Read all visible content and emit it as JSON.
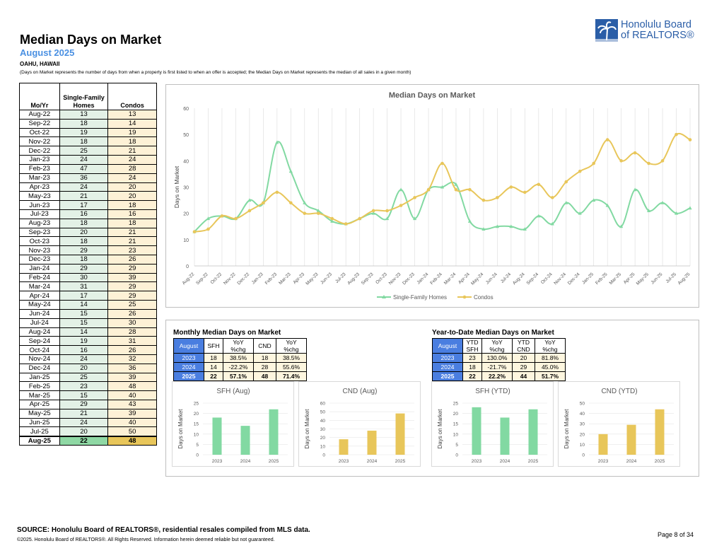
{
  "header": {
    "title": "Median Days on Market",
    "subtitle": "August 2025",
    "location": "OAHU, HAWAII",
    "note": "(Days on Market represents the number of days from when a property is first listed to when an offer is accepted; the Median Days on Market represents the median of all sales in a given month)"
  },
  "logo": {
    "line1": "Honolulu Board",
    "line2": "of REALTORS®"
  },
  "left_table": {
    "headers": [
      "Mo/Yr",
      "Single-Family Homes",
      "Condos"
    ],
    "rows": [
      [
        "Aug-22",
        "13",
        "13"
      ],
      [
        "Sep-22",
        "18",
        "14"
      ],
      [
        "Oct-22",
        "19",
        "19"
      ],
      [
        "Nov-22",
        "18",
        "18"
      ],
      [
        "Dec-22",
        "25",
        "21"
      ],
      [
        "Jan-23",
        "24",
        "24"
      ],
      [
        "Feb-23",
        "47",
        "28"
      ],
      [
        "Mar-23",
        "36",
        "24"
      ],
      [
        "Apr-23",
        "24",
        "20"
      ],
      [
        "May-23",
        "21",
        "20"
      ],
      [
        "Jun-23",
        "17",
        "18"
      ],
      [
        "Jul-23",
        "16",
        "16"
      ],
      [
        "Aug-23",
        "18",
        "18"
      ],
      [
        "Sep-23",
        "20",
        "21"
      ],
      [
        "Oct-23",
        "18",
        "21"
      ],
      [
        "Nov-23",
        "29",
        "23"
      ],
      [
        "Dec-23",
        "18",
        "26"
      ],
      [
        "Jan-24",
        "29",
        "29"
      ],
      [
        "Feb-24",
        "30",
        "39"
      ],
      [
        "Mar-24",
        "31",
        "29"
      ],
      [
        "Apr-24",
        "17",
        "29"
      ],
      [
        "May-24",
        "14",
        "25"
      ],
      [
        "Jun-24",
        "15",
        "26"
      ],
      [
        "Jul-24",
        "15",
        "30"
      ],
      [
        "Aug-24",
        "14",
        "28"
      ],
      [
        "Sep-24",
        "19",
        "31"
      ],
      [
        "Oct-24",
        "16",
        "26"
      ],
      [
        "Nov-24",
        "24",
        "32"
      ],
      [
        "Dec-24",
        "20",
        "36"
      ],
      [
        "Jan-25",
        "25",
        "39"
      ],
      [
        "Feb-25",
        "23",
        "48"
      ],
      [
        "Mar-25",
        "15",
        "40"
      ],
      [
        "Apr-25",
        "29",
        "43"
      ],
      [
        "May-25",
        "21",
        "39"
      ],
      [
        "Jun-25",
        "24",
        "40"
      ],
      [
        "Jul-25",
        "20",
        "50"
      ]
    ],
    "last_row": [
      "Aug-25",
      "22",
      "48"
    ]
  },
  "monthly": {
    "title": "Monthly Median Days on Market",
    "headers": [
      "August",
      "SFH",
      "YoY %chg",
      "CND",
      "YoY %chg"
    ],
    "rows": [
      [
        "2023",
        "18",
        "38.5%",
        "18",
        "38.5%"
      ],
      [
        "2024",
        "14",
        "-22.2%",
        "28",
        "55.6%"
      ],
      [
        "2025",
        "22",
        "57.1%",
        "48",
        "71.4%"
      ]
    ]
  },
  "ytd": {
    "title": "Year-to-Date Median Days on Market",
    "headers": [
      "August",
      "YTD SFH",
      "YoY %chg",
      "YTD CND",
      "YoY %chg"
    ],
    "rows": [
      [
        "2023",
        "23",
        "130.0%",
        "20",
        "81.8%"
      ],
      [
        "2024",
        "18",
        "-21.7%",
        "29",
        "45.0%"
      ],
      [
        "2025",
        "22",
        "22.2%",
        "44",
        "51.7%"
      ]
    ]
  },
  "colors": {
    "sfh": "#82d9a2",
    "condo": "#e8c65a",
    "header_blue": "#4a7ee0",
    "accent": "#4a90e2"
  },
  "chart_data": [
    {
      "type": "line",
      "title": "Median Days on Market",
      "ylabel": "Days on Market",
      "xlabel": "",
      "ylim": [
        0,
        60
      ],
      "yticks": [
        0,
        10,
        20,
        30,
        40,
        50,
        60
      ],
      "grid": true,
      "legend": "bottom",
      "categories": [
        "Aug-22",
        "Sep-22",
        "Oct-22",
        "Nov-22",
        "Dec-22",
        "Jan-23",
        "Feb-23",
        "Mar-23",
        "Apr-23",
        "May-23",
        "Jun-23",
        "Jul-23",
        "Aug-23",
        "Sep-23",
        "Oct-23",
        "Nov-23",
        "Dec-23",
        "Jan-24",
        "Feb-24",
        "Mar-24",
        "Apr-24",
        "May-24",
        "Jun-24",
        "Jul-24",
        "Aug-24",
        "Sep-24",
        "Oct-24",
        "Nov-24",
        "Dec-24",
        "Jan-25",
        "Feb-25",
        "Mar-25",
        "Apr-25",
        "May-25",
        "Jun-25",
        "Jul-25",
        "Aug-25"
      ],
      "series": [
        {
          "name": "Single-Family Homes",
          "values": [
            13,
            18,
            19,
            18,
            25,
            24,
            47,
            36,
            24,
            21,
            17,
            16,
            18,
            20,
            18,
            29,
            18,
            29,
            30,
            31,
            17,
            14,
            15,
            15,
            14,
            19,
            16,
            24,
            20,
            25,
            23,
            15,
            29,
            21,
            24,
            20,
            22
          ]
        },
        {
          "name": "Condos",
          "values": [
            13,
            14,
            19,
            18,
            21,
            24,
            28,
            24,
            20,
            20,
            18,
            16,
            18,
            21,
            21,
            23,
            26,
            29,
            39,
            29,
            29,
            25,
            26,
            30,
            28,
            31,
            26,
            32,
            36,
            39,
            48,
            40,
            43,
            39,
            40,
            50,
            48
          ]
        }
      ]
    },
    {
      "type": "bar",
      "title": "SFH (Aug)",
      "ylabel": "Days on Market",
      "categories": [
        "2023",
        "2024",
        "2025"
      ],
      "values": [
        18,
        14,
        22
      ],
      "ylim": [
        0,
        25
      ],
      "yticks": [
        0,
        5,
        10,
        15,
        20,
        25
      ]
    },
    {
      "type": "bar",
      "title": "CND (Aug)",
      "ylabel": "Days on Market",
      "categories": [
        "2023",
        "2024",
        "2025"
      ],
      "values": [
        18,
        28,
        48
      ],
      "ylim": [
        0,
        60
      ],
      "yticks": [
        0,
        10,
        20,
        30,
        40,
        50,
        60
      ]
    },
    {
      "type": "bar",
      "title": "SFH (YTD)",
      "ylabel": "Days on Market",
      "categories": [
        "2023",
        "2024",
        "2025"
      ],
      "values": [
        23,
        18,
        22
      ],
      "ylim": [
        0,
        25
      ],
      "yticks": [
        0,
        5,
        10,
        15,
        20,
        25
      ]
    },
    {
      "type": "bar",
      "title": "CND (YTD)",
      "ylabel": "Days on Market",
      "categories": [
        "2023",
        "2024",
        "2025"
      ],
      "values": [
        20,
        29,
        44
      ],
      "ylim": [
        0,
        50
      ],
      "yticks": [
        0,
        10,
        20,
        30,
        40,
        50
      ]
    }
  ],
  "footer": {
    "source": "SOURCE: Honolulu Board of REALTORS®, residential resales compiled from MLS data.",
    "copyright": "©2025. Honolulu Board of REALTORS®. All Rights Reserved. Information herein deemed reliable but not guaranteed.",
    "page": "Page 8 of 34"
  }
}
